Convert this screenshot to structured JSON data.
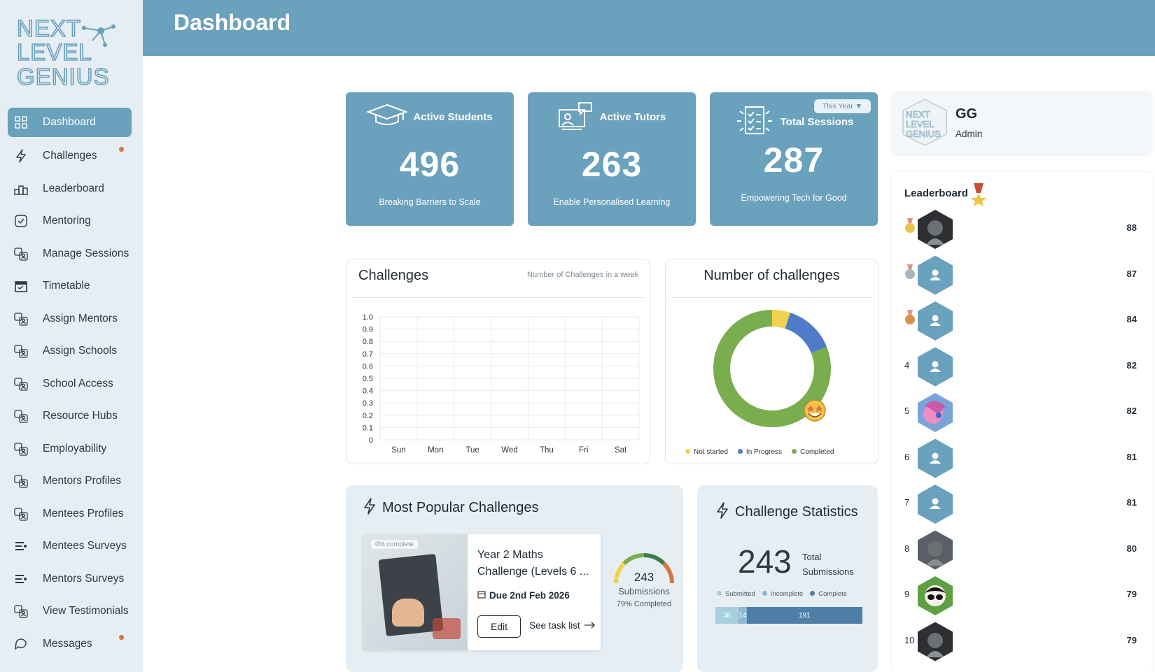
{
  "app": {
    "logo_text": "NEXT LEVEL GENIUS"
  },
  "header": {
    "title": "Dashboard"
  },
  "sidebar": {
    "items": [
      {
        "label": "Dashboard",
        "icon": "grid-icon"
      },
      {
        "label": "Challenges",
        "icon": "bolt-icon"
      },
      {
        "label": "Leaderboard",
        "icon": "podium-icon"
      },
      {
        "label": "Mentoring",
        "icon": "check-square-icon"
      },
      {
        "label": "Manage Sessions",
        "icon": "people-icon"
      },
      {
        "label": "Timetable",
        "icon": "calendar-icon"
      },
      {
        "label": "Assign Mentors",
        "icon": "people-icon"
      },
      {
        "label": "Assign Schools",
        "icon": "people-icon"
      },
      {
        "label": "School Access",
        "icon": "people-icon"
      },
      {
        "label": "Resource Hubs",
        "icon": "people-icon"
      },
      {
        "label": "Employability",
        "icon": "people-icon"
      },
      {
        "label": "Mentors Profiles",
        "icon": "people-icon"
      },
      {
        "label": "Mentees Profiles",
        "icon": "people-icon"
      },
      {
        "label": "Mentees Surveys",
        "icon": "survey-icon"
      },
      {
        "label": "Mentors Surveys",
        "icon": "survey-icon"
      },
      {
        "label": "View Testimonials",
        "icon": "people-icon"
      },
      {
        "label": "Messages",
        "icon": "chat-icon"
      }
    ]
  },
  "stats": [
    {
      "title": "Active Students",
      "value": "496",
      "subtitle": "Breaking Barriers to Scale"
    },
    {
      "title": "Active Tutors",
      "value": "263",
      "subtitle": "Enable Personalised Learning"
    },
    {
      "title": "Total Sessions",
      "value": "287",
      "subtitle": "Empowering Tech for Good",
      "filter": "This Year ▼"
    }
  ],
  "challenges_chart": {
    "title": "Challenges",
    "subtitle": "Number of Challenges in a week"
  },
  "donut": {
    "title": "Number of challenges"
  },
  "chart_data": [
    {
      "type": "bar",
      "title": "Challenges",
      "categories": [
        "Sun",
        "Mon",
        "Tue",
        "Wed",
        "Thu",
        "Fri",
        "Sat"
      ],
      "values": [
        0,
        0,
        0,
        0,
        0,
        0,
        0
      ],
      "yticks": [
        "0",
        "0.1",
        "0.2",
        "0.3",
        "0.4",
        "0.5",
        "0.6",
        "0.7",
        "0.8",
        "0.9",
        "1.0"
      ],
      "ylim": [
        0,
        1.0
      ]
    },
    {
      "type": "pie",
      "title": "Number of challenges",
      "labels": [
        "Not started",
        "In Progress",
        "Completed"
      ],
      "values": [
        5,
        14,
        81
      ],
      "colors": [
        "#f0d24e",
        "#4f7bc8",
        "#7aad4e"
      ]
    }
  ],
  "popular": {
    "title": "Most Popular Challenges",
    "complete": "0% complete",
    "name": "Year 2 Maths Challenge (Levels 6 ...",
    "due": "Due 2nd Feb 2026",
    "edit": "Edit",
    "see": "See task list",
    "submissions": "243",
    "sub_label": "Submissions",
    "completed": "79% Completed",
    "gauge_fraction": 0.79
  },
  "stats_card": {
    "title": "Challenge Statistics",
    "total": "243",
    "total_label_1": "Total",
    "total_label_2": "Submissions",
    "legend": [
      "Submitted",
      "Incomplete",
      "Complete"
    ],
    "bars": [
      {
        "value": "38",
        "n": 38
      },
      {
        "value": "14",
        "n": 14
      },
      {
        "value": "191",
        "n": 191
      }
    ]
  },
  "profile": {
    "initials": "GG",
    "role": "Admin"
  },
  "leaderboard": {
    "title": "Leaderboard",
    "rows": [
      {
        "rank": "",
        "medal": "gold",
        "score": "88",
        "avatar": "photo-dark"
      },
      {
        "rank": "",
        "medal": "silver",
        "score": "87",
        "avatar": "user"
      },
      {
        "rank": "",
        "medal": "bronze",
        "score": "84",
        "avatar": "user"
      },
      {
        "rank": "4",
        "score": "82",
        "avatar": "user"
      },
      {
        "rank": "5",
        "score": "82",
        "avatar": "photo-pink"
      },
      {
        "rank": "6",
        "score": "81",
        "avatar": "user"
      },
      {
        "rank": "7",
        "score": "81",
        "avatar": "user"
      },
      {
        "rank": "8",
        "score": "80",
        "avatar": "photo-gray"
      },
      {
        "rank": "9",
        "score": "79",
        "avatar": "photo-green"
      },
      {
        "rank": "10",
        "score": "79",
        "avatar": "photo-dark"
      }
    ]
  },
  "colors": {
    "primary": "#6aa1bc",
    "sidebar": "#e6eef3",
    "accent_dot": "#d9743c"
  }
}
